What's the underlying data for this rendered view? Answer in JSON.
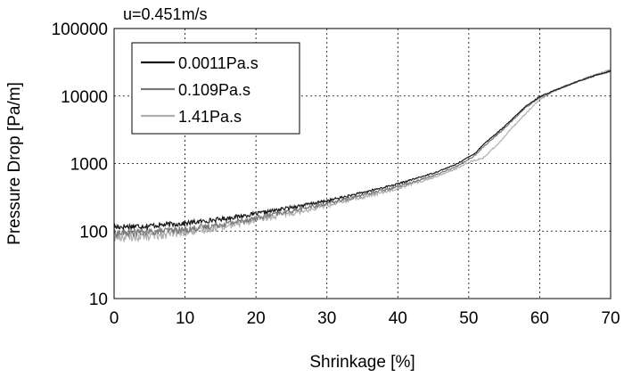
{
  "chart_data": {
    "type": "line",
    "title": "u=0.451m/s",
    "xlabel": "Shrinkage [%]",
    "ylabel": "Pressure Drop [Pa/m]",
    "xlim": [
      0,
      70
    ],
    "ylim": [
      10,
      100000
    ],
    "y_scale": "log",
    "grid": true,
    "x_ticks": [
      0,
      10,
      20,
      30,
      40,
      50,
      60,
      70
    ],
    "x_tick_labels": [
      "0",
      "10",
      "20",
      "30",
      "40",
      "50",
      "60",
      "70"
    ],
    "y_ticks": [
      10,
      100,
      1000,
      10000,
      100000
    ],
    "y_tick_labels": [
      "10",
      "100",
      "1000",
      "10000",
      "100000"
    ],
    "legend_position": "top-left",
    "series": [
      {
        "name": "0.0011Pa.s",
        "color": "#1a1a1a",
        "x": [
          0,
          5,
          10,
          15,
          20,
          25,
          30,
          35,
          40,
          45,
          48,
          50,
          51,
          52,
          55,
          58,
          60,
          62,
          65,
          68,
          70
        ],
        "y": [
          115,
          120,
          130,
          150,
          180,
          225,
          280,
          370,
          500,
          720,
          950,
          1250,
          1450,
          1900,
          3500,
          7000,
          9800,
          12000,
          16000,
          20500,
          23500
        ]
      },
      {
        "name": "0.109Pa.s",
        "color": "#7a7a7a",
        "x": [
          0,
          5,
          10,
          15,
          20,
          25,
          30,
          35,
          40,
          45,
          48,
          50,
          51,
          52,
          55,
          58,
          60,
          62,
          65,
          68,
          70
        ],
        "y": [
          92,
          97,
          105,
          125,
          155,
          200,
          255,
          340,
          460,
          660,
          880,
          1150,
          1350,
          1750,
          3300,
          6700,
          9500,
          11800,
          15800,
          20300,
          23300
        ]
      },
      {
        "name": "1.41Pa.s",
        "color": "#b0b0b0",
        "x": [
          0,
          5,
          10,
          15,
          20,
          25,
          30,
          35,
          40,
          45,
          48,
          50,
          52,
          54,
          57,
          60,
          62,
          65,
          68,
          70
        ],
        "y": [
          80,
          85,
          95,
          115,
          145,
          185,
          240,
          315,
          430,
          620,
          820,
          1050,
          1200,
          1900,
          4300,
          8800,
          12000,
          16000,
          21000,
          24500
        ]
      }
    ]
  }
}
